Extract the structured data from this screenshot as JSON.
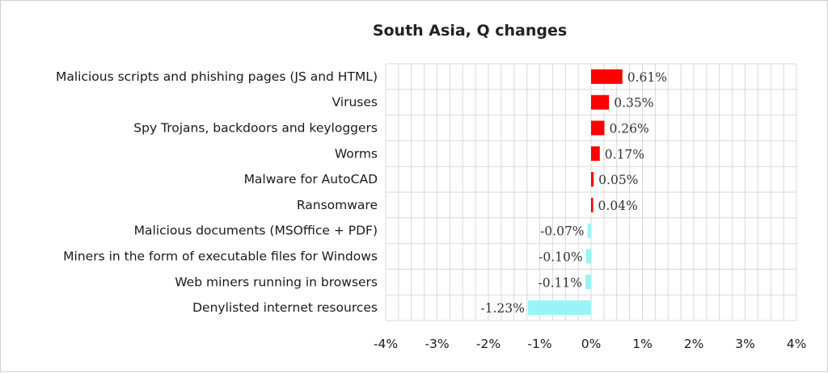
{
  "chart_data": {
    "type": "bar",
    "orientation": "horizontal",
    "title": "South Asia, Q changes",
    "categories": [
      "Malicious scripts and phishing pages (JS and HTML)",
      "Viruses",
      "Spy Trojans, backdoors and keyloggers",
      "Worms",
      "Malware for AutoCAD",
      "Ransomware",
      "Malicious documents (MSOffice + PDF)",
      "Miners in the form of executable files for Windows",
      "Web miners running in browsers",
      "Denylisted internet resources"
    ],
    "values": [
      0.61,
      0.35,
      0.26,
      0.17,
      0.05,
      0.04,
      -0.07,
      -0.1,
      -0.11,
      -1.23
    ],
    "data_labels": [
      "0.61%",
      "0.35%",
      "0.26%",
      "0.17%",
      "0.05%",
      "0.04%",
      "-0.07%",
      "-0.10%",
      "-0.11%",
      "-1.23%"
    ],
    "xlim": [
      -4,
      4
    ],
    "x_ticks": [
      -4,
      -3,
      -2,
      -1,
      0,
      1,
      2,
      3,
      4
    ],
    "x_tick_labels": [
      "-4%",
      "-3%",
      "-2%",
      "-1%",
      "0%",
      "1%",
      "2%",
      "3%",
      "4%"
    ],
    "grid": true,
    "colors": {
      "positive": "#ff0000",
      "negative": "#99f5f5",
      "grid": "#d9d9d9"
    }
  }
}
